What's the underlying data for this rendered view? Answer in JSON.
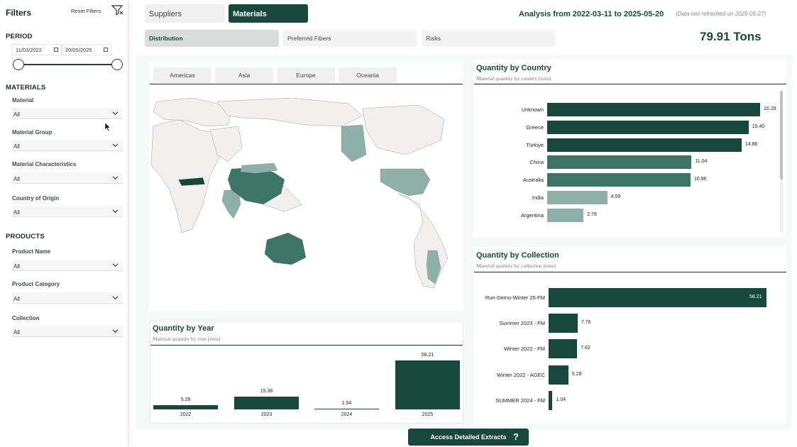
{
  "sidebar": {
    "title": "Filters",
    "reset_label": "Reset Filters",
    "period": {
      "heading": "PERIOD",
      "start_date": "11/03/2022",
      "end_date": "20/05/2025",
      "slider_range": [
        0,
        1
      ]
    },
    "materials": {
      "heading": "MATERIALS",
      "filters": [
        {
          "label": "Material",
          "value": "All"
        },
        {
          "label": "Material Group",
          "value": "All"
        },
        {
          "label": "Material Characteristics",
          "value": "All"
        },
        {
          "label": "Country of Origin",
          "value": "All"
        }
      ]
    },
    "products": {
      "heading": "PRODUCTS",
      "filters": [
        {
          "label": "Product Name",
          "value": "All"
        },
        {
          "label": "Product Category",
          "value": "All"
        },
        {
          "label": "Collection",
          "value": "All"
        }
      ]
    }
  },
  "header": {
    "tabs": [
      {
        "label": "Suppliers",
        "active": false
      },
      {
        "label": "Materials",
        "active": true
      }
    ],
    "analysis": "Analysis from 2022-03-11 to 2025-05-20",
    "refreshed": "(Data last refreshed on 2025-05-27)",
    "subtabs": [
      {
        "label": "Distribution",
        "active": true
      },
      {
        "label": "Preferred Fibers",
        "active": false
      },
      {
        "label": "Risks",
        "active": false
      }
    ],
    "total": "79.91 Tons"
  },
  "map": {
    "regions": [
      "Americas",
      "Asia",
      "Europe",
      "Oceania"
    ]
  },
  "colors": {
    "brand": "#17483b",
    "bar_dark": "#17483b",
    "bar_mid": "#3d7565",
    "bar_light": "#8fb0a6",
    "map_light": "#f3efef"
  },
  "chart_data": [
    {
      "type": "bar",
      "orientation": "horizontal",
      "title": "Quantity by Country",
      "subtitle": "Material quantity by country (tons)",
      "categories": [
        "Unknown",
        "Greece",
        "Türkiye",
        "China",
        "Australia",
        "India",
        "Argentina"
      ],
      "values": [
        16.28,
        15.4,
        14.86,
        11.04,
        10.96,
        4.59,
        2.78
      ],
      "data_labels": [
        "16.28",
        "15.40",
        "14.86",
        "11.04",
        "10.96",
        "4.59",
        "2.78"
      ]
    },
    {
      "type": "bar",
      "orientation": "horizontal",
      "title": "Quantity by Collection",
      "subtitle": "Material quantity by collection (tons)",
      "categories": [
        "Run-Demo-Winter 25-FM",
        "Summer 2023 - FM",
        "Winter 2022 - FM",
        "Winter 2022 - AGEC",
        "SUMMER 2024 - FM"
      ],
      "values": [
        58.21,
        7.76,
        7.62,
        5.28,
        1.04
      ],
      "data_labels": [
        "58.21",
        "7.76",
        "7.62",
        "5.28",
        "1.04"
      ]
    },
    {
      "type": "bar",
      "orientation": "vertical",
      "title": "Quantity by Year",
      "subtitle": "Material quantity by year (tons)",
      "categories": [
        "2022",
        "2023",
        "2024",
        "2025"
      ],
      "values": [
        5.28,
        15.38,
        1.04,
        58.21
      ],
      "data_labels": [
        "5.28",
        "15.38",
        "1.04",
        "58.21"
      ]
    }
  ],
  "footer": {
    "access_label": "Access Detailed Extracts",
    "help_glyph": "?"
  }
}
